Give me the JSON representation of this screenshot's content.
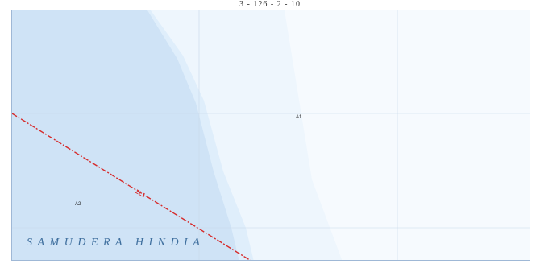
{
  "map": {
    "sheet_number": "3 - 126 - 2 - 10",
    "sea_name": "SAMUDERA HINDIA",
    "areas": [
      {
        "code": "A1"
      },
      {
        "code": "A2"
      }
    ],
    "boundary": {
      "code": "ZL1",
      "color": "#d62b2b"
    },
    "colors": {
      "deep_water": "#cfe3f6",
      "mid_water": "#dfeefb",
      "shallow_water": "#eef6fd",
      "open_area": "#f6fafe",
      "grid": "#c8d8ea"
    }
  }
}
